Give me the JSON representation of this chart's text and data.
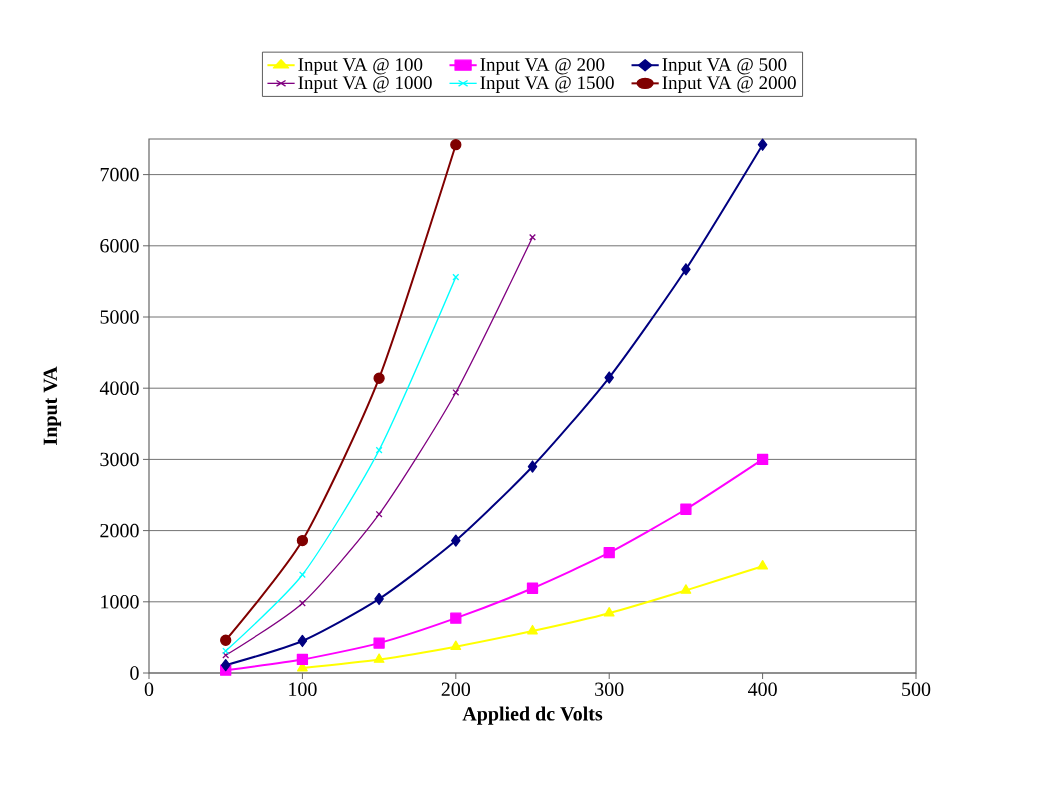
{
  "chart_data": {
    "type": "line",
    "xlabel": "Applied dc Volts",
    "ylabel": "Input VA",
    "x": [
      50,
      100,
      150,
      200,
      250,
      300,
      350,
      400
    ],
    "xlim": [
      0,
      500
    ],
    "xticks": [
      0,
      100,
      200,
      300,
      400,
      500
    ],
    "ylim": [
      0,
      7500
    ],
    "yticks": [
      0,
      1000,
      2000,
      3000,
      4000,
      5000,
      6000,
      7000
    ],
    "grid": "y",
    "legend": "top",
    "line_style": "solid",
    "series": [
      {
        "name": "Input VA @ 100",
        "color": "#ffff00",
        "marker": "triangle",
        "values": [
          null,
          70,
          190,
          370,
          590,
          840,
          1160,
          1500
        ]
      },
      {
        "name": "Input VA @ 200",
        "color": "#ff00ff",
        "marker": "square",
        "values": [
          40,
          190,
          420,
          770,
          1190,
          1690,
          2300,
          3000
        ]
      },
      {
        "name": "Input VA @ 500",
        "color": "#000080",
        "marker": "diamond",
        "values": [
          110,
          450,
          1040,
          1860,
          2900,
          4150,
          5670,
          7420
        ]
      },
      {
        "name": "Input VA @ 1000",
        "color": "#800080",
        "marker": "cross",
        "values": [
          250,
          980,
          2230,
          3940,
          6120,
          null,
          null,
          null
        ]
      },
      {
        "name": "Input VA @ 1500",
        "color": "#00ffff",
        "marker": "cross",
        "values": [
          310,
          1380,
          3130,
          5560,
          null,
          null,
          null,
          null
        ]
      },
      {
        "name": "Input VA @ 2000",
        "color": "#800000",
        "marker": "circle",
        "values": [
          460,
          1860,
          4140,
          7420,
          null,
          null,
          null,
          null
        ]
      }
    ]
  }
}
